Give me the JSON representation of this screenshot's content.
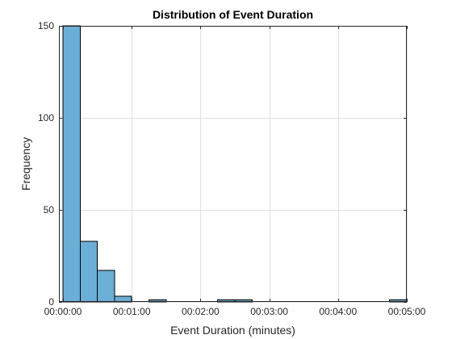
{
  "chart_data": {
    "type": "bar",
    "title": "Distribution of Event Duration",
    "xlabel": "Event Duration (minutes)",
    "ylabel": "Frequency",
    "xlim_seconds": [
      -3.5,
      300
    ],
    "ylim": [
      0,
      150
    ],
    "grid": true,
    "bar_color": "#6baed6",
    "bar_edge_color": "#000000",
    "x_ticks": [
      {
        "seconds": 0,
        "label": "00:00:00"
      },
      {
        "seconds": 60,
        "label": "00:01:00"
      },
      {
        "seconds": 120,
        "label": "00:02:00"
      },
      {
        "seconds": 180,
        "label": "00:03:00"
      },
      {
        "seconds": 240,
        "label": "00:04:00"
      },
      {
        "seconds": 300,
        "label": "00:05:00"
      }
    ],
    "y_ticks": [
      0,
      50,
      100,
      150
    ],
    "bins": [
      {
        "start_seconds": 0,
        "end_seconds": 15,
        "count": 150
      },
      {
        "start_seconds": 15,
        "end_seconds": 30,
        "count": 33
      },
      {
        "start_seconds": 30,
        "end_seconds": 45,
        "count": 17
      },
      {
        "start_seconds": 45,
        "end_seconds": 60,
        "count": 3
      },
      {
        "start_seconds": 60,
        "end_seconds": 75,
        "count": 0
      },
      {
        "start_seconds": 75,
        "end_seconds": 90,
        "count": 1
      },
      {
        "start_seconds": 90,
        "end_seconds": 105,
        "count": 0
      },
      {
        "start_seconds": 105,
        "end_seconds": 120,
        "count": 0
      },
      {
        "start_seconds": 120,
        "end_seconds": 135,
        "count": 0
      },
      {
        "start_seconds": 135,
        "end_seconds": 150,
        "count": 1
      },
      {
        "start_seconds": 150,
        "end_seconds": 165,
        "count": 1
      },
      {
        "start_seconds": 165,
        "end_seconds": 180,
        "count": 0
      },
      {
        "start_seconds": 180,
        "end_seconds": 195,
        "count": 0
      },
      {
        "start_seconds": 195,
        "end_seconds": 210,
        "count": 0
      },
      {
        "start_seconds": 210,
        "end_seconds": 225,
        "count": 0
      },
      {
        "start_seconds": 225,
        "end_seconds": 240,
        "count": 0
      },
      {
        "start_seconds": 240,
        "end_seconds": 255,
        "count": 0
      },
      {
        "start_seconds": 255,
        "end_seconds": 270,
        "count": 0
      },
      {
        "start_seconds": 270,
        "end_seconds": 285,
        "count": 0
      },
      {
        "start_seconds": 285,
        "end_seconds": 300,
        "count": 1
      }
    ]
  }
}
